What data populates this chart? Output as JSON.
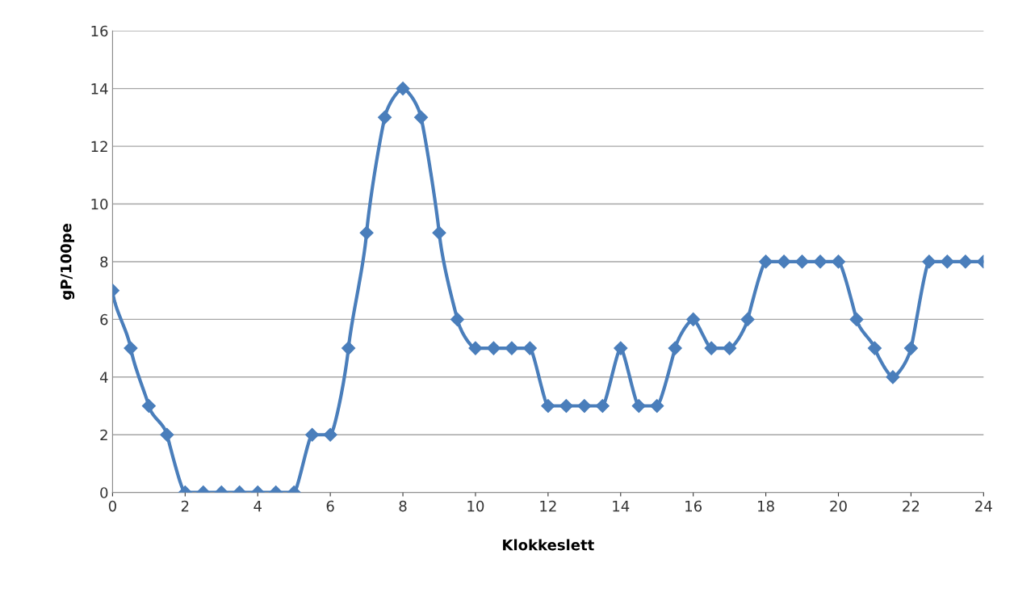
{
  "chart_data": {
    "type": "line",
    "xlabel": "Klokkeslett",
    "ylabel": "gP/100pe",
    "x": [
      0,
      0.5,
      1,
      1.5,
      2,
      2.5,
      3,
      3.5,
      4,
      4.5,
      5,
      5.5,
      6,
      6.5,
      7,
      7.5,
      8,
      8.5,
      9,
      9.5,
      10,
      10.5,
      11,
      11.5,
      12,
      12.5,
      13,
      13.5,
      14,
      14.5,
      15,
      15.5,
      16,
      16.5,
      17,
      17.5,
      18,
      18.5,
      19,
      19.5,
      20,
      20.5,
      21,
      21.5,
      22,
      22.5,
      23,
      23.5,
      24
    ],
    "series": [
      {
        "color": "#4a7ebb",
        "values": [
          7,
          5,
          3,
          2,
          0,
          0,
          0,
          0,
          0,
          0,
          0,
          2,
          2,
          5,
          9,
          13,
          14,
          13,
          9,
          6,
          5,
          5,
          5,
          5,
          3,
          3,
          3,
          3,
          5,
          3,
          3,
          5,
          6,
          5,
          5,
          6,
          8,
          8,
          8,
          8,
          8,
          6,
          5,
          4,
          5,
          8,
          8,
          8,
          8
        ]
      }
    ],
    "xlim": [
      0,
      24
    ],
    "xticks": [
      0,
      2,
      4,
      6,
      8,
      10,
      12,
      14,
      16,
      18,
      20,
      22,
      24
    ],
    "ylim": [
      0,
      16
    ],
    "yticks": [
      0,
      2,
      4,
      6,
      8,
      10,
      12,
      14,
      16
    ],
    "grid": "y",
    "marker": "diamond",
    "line_style": "solid",
    "legend": false
  }
}
